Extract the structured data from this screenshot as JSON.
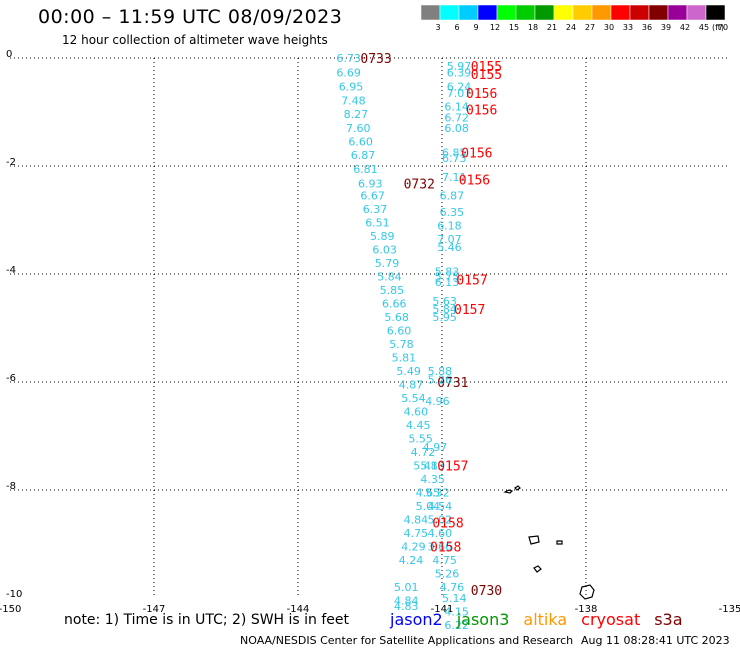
{
  "header": {
    "title": "00:00 – 11:59 UTC 08/09/2023",
    "subtitle": "12 hour collection of altimeter wave heights"
  },
  "colorbar": {
    "ticks": [
      "3",
      "6",
      "9",
      "12",
      "15",
      "18",
      "21",
      "24",
      "27",
      "30",
      "33",
      "36",
      "39",
      "42",
      "45",
      "70"
    ],
    "unit": "(ft)",
    "colors": [
      "#808080",
      "#00ffff",
      "#00ccff",
      "#0000ff",
      "#00ff00",
      "#00cc00",
      "#009900",
      "#ffff00",
      "#ffcc00",
      "#ff9900",
      "#ff0000",
      "#cc0000",
      "#800000",
      "#990099",
      "#cc66cc",
      "#000000"
    ]
  },
  "footer": {
    "note": "note:  1) Time is in UTC;  2) SWH is in feet",
    "satellites": [
      {
        "name": "jason2",
        "color": "#0000ff"
      },
      {
        "name": "jason3",
        "color": "#009900"
      },
      {
        "name": "altika",
        "color": "#ff9900"
      },
      {
        "name": "cryosat",
        "color": "#ff0000"
      },
      {
        "name": "s3a",
        "color": "#800000"
      }
    ],
    "credit": "NOAA/NESDIS Center for Satellite Applications and Research",
    "timestamp": "Aug 11 08:28:41 UTC 2023"
  },
  "chart_data": {
    "type": "scatter",
    "title": "00:00 – 11:59 UTC 08/09/2023",
    "xlim": [
      -150,
      -135
    ],
    "ylim": [
      -10,
      0
    ],
    "x_ticks": [
      "-150",
      "-147",
      "-144",
      "-141",
      "-138",
      "-135"
    ],
    "y_ticks": [
      "0",
      "-2",
      "-4",
      "-6",
      "-8",
      "-10"
    ],
    "grid": true,
    "track_a": {
      "color": "#33c8e8",
      "points": [
        {
          "x": -143.2,
          "y": 0.0,
          "v": "6.73"
        },
        {
          "x": -143.2,
          "y": -0.27,
          "v": "6.69"
        },
        {
          "x": -143.15,
          "y": -0.53,
          "v": "6.95"
        },
        {
          "x": -143.1,
          "y": -0.79,
          "v": "7.48"
        },
        {
          "x": -143.05,
          "y": -1.04,
          "v": "8.27"
        },
        {
          "x": -143.0,
          "y": -1.3,
          "v": "7.60"
        },
        {
          "x": -142.95,
          "y": -1.55,
          "v": "6.60"
        },
        {
          "x": -142.9,
          "y": -1.8,
          "v": "6.87"
        },
        {
          "x": -142.85,
          "y": -2.06,
          "v": "6.81"
        },
        {
          "x": -142.75,
          "y": -2.32,
          "v": "6.93"
        },
        {
          "x": -142.7,
          "y": -2.55,
          "v": "6.67"
        },
        {
          "x": -142.65,
          "y": -2.8,
          "v": "6.37"
        },
        {
          "x": -142.6,
          "y": -3.05,
          "v": "6.51"
        },
        {
          "x": -142.5,
          "y": -3.3,
          "v": "5.89"
        },
        {
          "x": -142.45,
          "y": -3.55,
          "v": "6.03"
        },
        {
          "x": -142.4,
          "y": -3.8,
          "v": "5.79"
        },
        {
          "x": -142.35,
          "y": -4.05,
          "v": "5.84"
        },
        {
          "x": -142.3,
          "y": -4.3,
          "v": "5.85"
        },
        {
          "x": -142.25,
          "y": -4.55,
          "v": "6.66"
        },
        {
          "x": -142.2,
          "y": -4.8,
          "v": "5.68"
        },
        {
          "x": -142.15,
          "y": -5.05,
          "v": "6.60"
        },
        {
          "x": -142.1,
          "y": -5.3,
          "v": "5.78"
        },
        {
          "x": -142.05,
          "y": -5.55,
          "v": "5.81"
        },
        {
          "x": -141.95,
          "y": -5.8,
          "v": "5.49"
        },
        {
          "x": -141.9,
          "y": -6.05,
          "v": "4.87"
        },
        {
          "x": -141.85,
          "y": -6.3,
          "v": "5.54"
        },
        {
          "x": -141.8,
          "y": -6.55,
          "v": "4.60"
        },
        {
          "x": -141.75,
          "y": -6.8,
          "v": "4.45"
        },
        {
          "x": -141.7,
          "y": -7.05,
          "v": "5.55"
        },
        {
          "x": -141.65,
          "y": -7.3,
          "v": "4.72"
        },
        {
          "x": -141.6,
          "y": -7.55,
          "v": "5.48"
        },
        {
          "x": -141.55,
          "y": -8.05,
          "v": "4.65"
        },
        {
          "x": -141.55,
          "y": -8.3,
          "v": "5.04"
        },
        {
          "x": -141.8,
          "y": -8.55,
          "v": "4.84"
        },
        {
          "x": -141.8,
          "y": -8.8,
          "v": "4.75"
        },
        {
          "x": -141.85,
          "y": -9.05,
          "v": "4.29"
        },
        {
          "x": -141.9,
          "y": -9.3,
          "v": "4.24"
        },
        {
          "x": -142.0,
          "y": -9.8,
          "v": "5.01"
        },
        {
          "x": -142.0,
          "y": -10.05,
          "v": "4.84"
        },
        {
          "x": -142.0,
          "y": -10.15,
          "v": "4.83"
        }
      ],
      "time_labels": [
        {
          "x": -142.7,
          "y": 0.0,
          "t": "0733",
          "color": "#800000"
        },
        {
          "x": -141.8,
          "y": -2.32,
          "t": "0732",
          "color": "#800000"
        },
        {
          "x": -141.1,
          "y": -6.0,
          "t": "0731",
          "color": "#800000"
        },
        {
          "x": -140.4,
          "y": -9.85,
          "t": "0730",
          "color": "#800000"
        }
      ]
    },
    "track_b": {
      "color": "#33c8e8",
      "points": [
        {
          "x": -140.9,
          "y": -0.15,
          "v": "5.97"
        },
        {
          "x": -140.9,
          "y": -0.27,
          "v": "6.39"
        },
        {
          "x": -140.9,
          "y": -0.53,
          "v": "6.24"
        },
        {
          "x": -140.9,
          "y": -0.65,
          "v": "7.07"
        },
        {
          "x": -140.95,
          "y": -0.9,
          "v": "6.14"
        },
        {
          "x": -140.95,
          "y": -1.1,
          "v": "6.72"
        },
        {
          "x": -140.95,
          "y": -1.3,
          "v": "6.08"
        },
        {
          "x": -141.0,
          "y": -1.75,
          "v": "6.85"
        },
        {
          "x": -141.0,
          "y": -1.85,
          "v": "6.73"
        },
        {
          "x": -141.0,
          "y": -2.2,
          "v": "7.11"
        },
        {
          "x": -141.05,
          "y": -2.55,
          "v": "6.87"
        },
        {
          "x": -141.05,
          "y": -2.85,
          "v": "6.35"
        },
        {
          "x": -141.1,
          "y": -3.1,
          "v": "6.18"
        },
        {
          "x": -141.1,
          "y": -3.35,
          "v": "7.07"
        },
        {
          "x": -141.1,
          "y": -3.5,
          "v": "5.46"
        },
        {
          "x": -141.15,
          "y": -3.95,
          "v": "5.83"
        },
        {
          "x": -141.15,
          "y": -4.05,
          "v": "5.75"
        },
        {
          "x": -141.15,
          "y": -4.15,
          "v": "6.13"
        },
        {
          "x": -141.2,
          "y": -4.5,
          "v": "5.63"
        },
        {
          "x": -141.2,
          "y": -4.65,
          "v": "5.84"
        },
        {
          "x": -141.2,
          "y": -4.8,
          "v": "5.95"
        },
        {
          "x": -141.3,
          "y": -5.8,
          "v": "5.88"
        },
        {
          "x": -141.3,
          "y": -5.95,
          "v": "5.26"
        },
        {
          "x": -141.35,
          "y": -6.35,
          "v": "4.96"
        },
        {
          "x": -141.4,
          "y": -7.2,
          "v": "4.97"
        },
        {
          "x": -141.45,
          "y": -7.55,
          "v": "5.13"
        },
        {
          "x": -141.45,
          "y": -7.8,
          "v": "4.35"
        },
        {
          "x": -141.35,
          "y": -8.05,
          "v": "5.32"
        },
        {
          "x": -141.3,
          "y": -8.3,
          "v": "4.54"
        },
        {
          "x": -141.3,
          "y": -8.55,
          "v": "5.02"
        },
        {
          "x": -141.3,
          "y": -8.8,
          "v": "4.60"
        },
        {
          "x": -141.3,
          "y": -9.05,
          "v": "3.66"
        },
        {
          "x": -141.2,
          "y": -9.3,
          "v": "4.75"
        },
        {
          "x": -141.15,
          "y": -9.55,
          "v": "5.26"
        },
        {
          "x": -141.05,
          "y": -9.8,
          "v": "4.76"
        },
        {
          "x": -141.0,
          "y": -10.0,
          "v": "5.14"
        },
        {
          "x": -140.95,
          "y": -10.25,
          "v": "4.15"
        },
        {
          "x": -140.95,
          "y": -10.5,
          "v": "6.22"
        }
      ],
      "time_labels": [
        {
          "x": -140.4,
          "y": -0.15,
          "t": "0155",
          "color": "#ff0000"
        },
        {
          "x": -140.4,
          "y": -0.3,
          "t": "0155",
          "color": "#ff0000"
        },
        {
          "x": -140.5,
          "y": -0.65,
          "t": "0156",
          "color": "#ff0000"
        },
        {
          "x": -140.5,
          "y": -0.95,
          "t": "0156",
          "color": "#ff0000"
        },
        {
          "x": -140.6,
          "y": -1.75,
          "t": "0156",
          "color": "#ff0000"
        },
        {
          "x": -140.65,
          "y": -2.25,
          "t": "0156",
          "color": "#ff0000"
        },
        {
          "x": -140.7,
          "y": -4.1,
          "t": "0157",
          "color": "#ff0000"
        },
        {
          "x": -140.75,
          "y": -4.65,
          "t": "0157",
          "color": "#ff0000"
        },
        {
          "x": -141.1,
          "y": -7.55,
          "t": "0157",
          "color": "#ff0000"
        },
        {
          "x": -141.2,
          "y": -8.6,
          "t": "0158",
          "color": "#ff0000"
        },
        {
          "x": -141.25,
          "y": -9.05,
          "t": "0158",
          "color": "#ff0000"
        }
      ]
    }
  }
}
